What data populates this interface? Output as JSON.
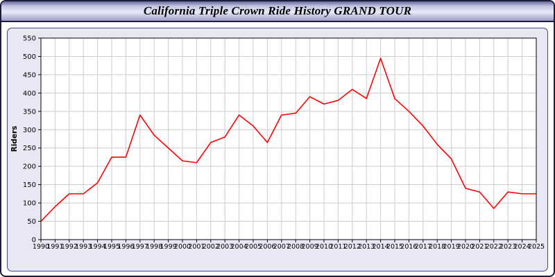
{
  "chart_data": {
    "type": "line",
    "title": "California Triple Crown Ride History GRAND TOUR",
    "xlabel": "",
    "ylabel": "Riders",
    "ylim": [
      0,
      550
    ],
    "ytick_step": 50,
    "grid": true,
    "legend_position": "none",
    "line_color": "#ff0000",
    "plot_bg": "#ffffff",
    "grid_color": "#cccccc",
    "x": [
      1990,
      1991,
      1992,
      1993,
      1994,
      1995,
      1996,
      1997,
      1998,
      1999,
      2000,
      2001,
      2002,
      2003,
      2004,
      2005,
      2006,
      2007,
      2008,
      2009,
      2010,
      2011,
      2012,
      2013,
      2014,
      2015,
      2016,
      2017,
      2018,
      2019,
      2020,
      2021,
      2022,
      2023,
      2024,
      2025
    ],
    "values": [
      50,
      90,
      125,
      125,
      155,
      225,
      225,
      340,
      285,
      250,
      215,
      210,
      265,
      280,
      340,
      310,
      265,
      340,
      345,
      390,
      370,
      380,
      410,
      385,
      495,
      385,
      350,
      310,
      260,
      220,
      140,
      130,
      85,
      130,
      125,
      125
    ]
  }
}
